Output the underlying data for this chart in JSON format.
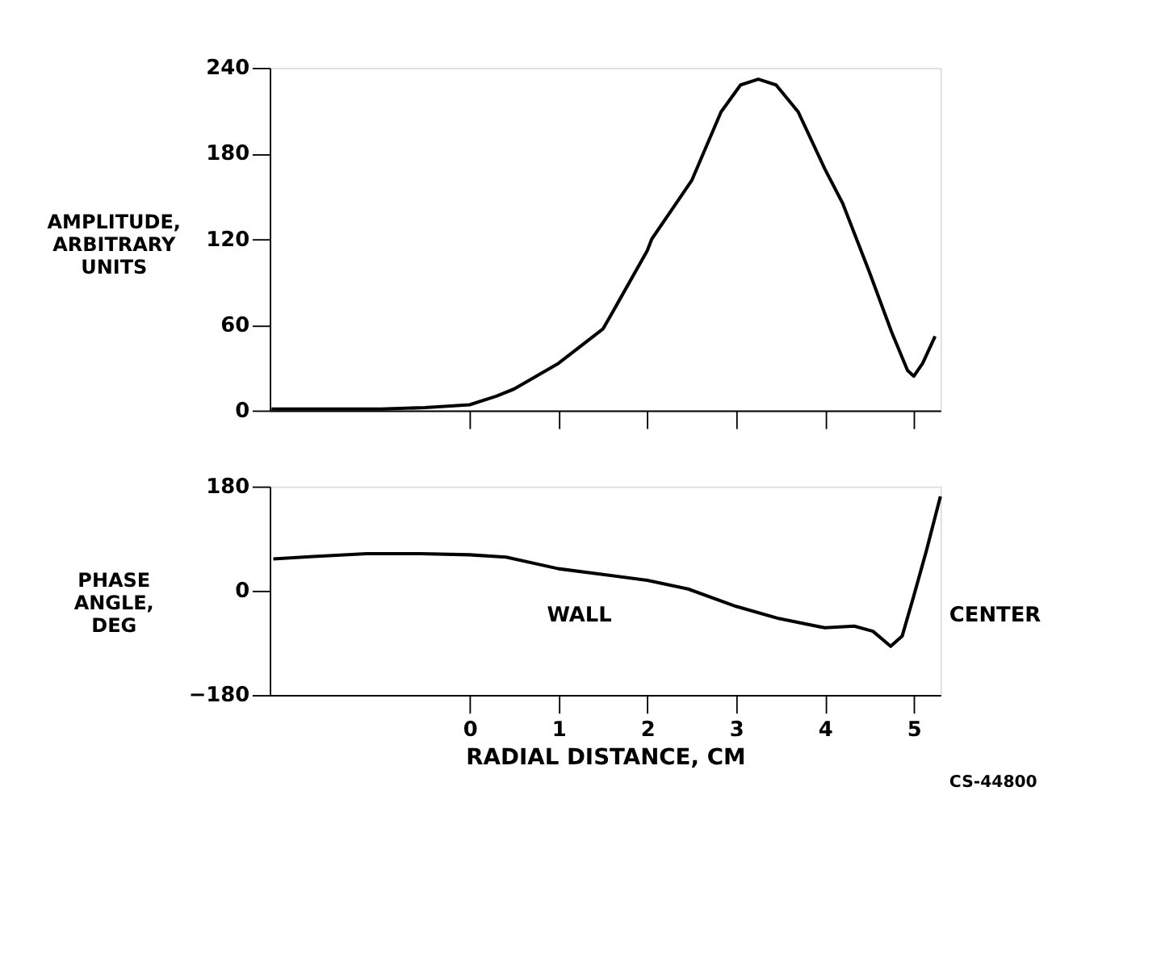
{
  "chart_data": [
    {
      "type": "line",
      "ylabel": "AMPLITUDE, ARBITRARY UNITS",
      "xlim": [
        -2.25,
        5.3
      ],
      "xticks": [
        0,
        1,
        2,
        3,
        4,
        5
      ],
      "ylim": [
        0,
        240
      ],
      "yticks": [
        0,
        60,
        120,
        180,
        240
      ],
      "tick_labels": "y",
      "grid": false,
      "marker": "none",
      "line_style": "solid",
      "series": [
        {
          "color": "#000000",
          "x": [
            -2.23,
            -1.5,
            -1,
            -0.5,
            0,
            0.3,
            0.5,
            1,
            1.5,
            1.62,
            2,
            2.05,
            2.5,
            2.83,
            3.05,
            3.25,
            3.45,
            3.7,
            4,
            4.2,
            4.5,
            4.75,
            4.93,
            5,
            5.1,
            5.24
          ],
          "values": [
            1,
            1,
            1,
            2,
            4,
            10,
            15,
            33,
            57,
            70,
            112,
            120,
            161,
            209,
            228,
            232,
            228,
            209,
            169,
            145,
            97,
            55,
            28,
            24,
            33,
            52
          ]
        }
      ]
    },
    {
      "type": "line",
      "xlabel": "RADIAL DISTANCE, CM",
      "ylabel": "PHASE ANGLE, DEG",
      "xlim": [
        -2.25,
        5.3
      ],
      "xticks": [
        0,
        1,
        2,
        3,
        4,
        5
      ],
      "ylim": [
        -180,
        180
      ],
      "yticks": [
        -180,
        0,
        180
      ],
      "grid": false,
      "marker": "none",
      "line_style": "solid",
      "annotations": [
        "WALL",
        "CENTER",
        "CS-44800"
      ],
      "series": [
        {
          "color": "#000000",
          "x": [
            -2.21,
            -1.76,
            -1.16,
            -0.55,
            0,
            0.41,
            1,
            1.5,
            2,
            2.46,
            3,
            3.48,
            4,
            4.33,
            4.54,
            4.74,
            4.87,
            5,
            5.14,
            5.3
          ],
          "values": [
            55,
            59,
            64,
            64,
            62,
            58,
            38,
            28,
            18,
            3,
            -27,
            -48,
            -64,
            -61,
            -70,
            -96,
            -78,
            -9,
            68,
            163
          ]
        }
      ]
    }
  ]
}
